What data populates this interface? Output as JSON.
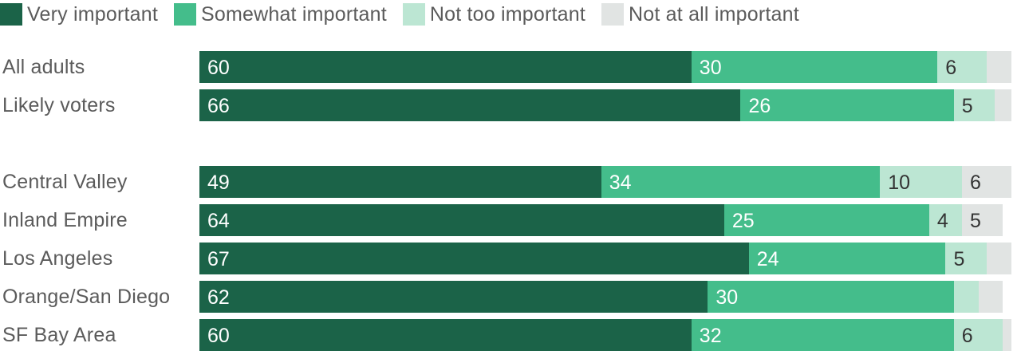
{
  "chart_data": {
    "type": "bar",
    "orientation": "horizontal",
    "stacked": true,
    "xlim": [
      0,
      100
    ],
    "grid": false,
    "legend_position": "top-left",
    "legend": [
      {
        "label": "Very important",
        "color": "#1b6348"
      },
      {
        "label": "Somewhat important",
        "color": "#44bd8b"
      },
      {
        "label": "Not too important",
        "color": "#bce6d3"
      },
      {
        "label": "Not at all important",
        "color": "#e1e4e3"
      }
    ],
    "categories": [
      "All adults",
      "Likely voters",
      "Central Valley",
      "Inland Empire",
      "Los Angeles",
      "Orange/San Diego",
      "SF Bay Area"
    ],
    "series": [
      {
        "name": "Very important",
        "color": "#1b6348",
        "label_color": "#ffffff",
        "values": [
          60,
          66,
          49,
          64,
          67,
          62,
          60
        ],
        "labels": [
          "60",
          "66",
          "49",
          "64",
          "67",
          "62",
          "60"
        ]
      },
      {
        "name": "Somewhat important",
        "color": "#44bd8b",
        "label_color": "#ffffff",
        "values": [
          30,
          26,
          34,
          25,
          24,
          30,
          32
        ],
        "labels": [
          "30",
          "26",
          "34",
          "25",
          "24",
          "30",
          "32"
        ]
      },
      {
        "name": "Not too important",
        "color": "#bce6d3",
        "label_color": "#333333",
        "values": [
          6,
          5,
          10,
          4,
          5,
          3,
          6
        ],
        "labels": [
          "6",
          "5",
          "10",
          "4",
          "5",
          "",
          "6"
        ]
      },
      {
        "name": "Not at all important",
        "color": "#e1e4e3",
        "label_color": "#333333",
        "values": [
          3,
          2,
          6,
          5,
          3,
          3,
          1
        ],
        "labels": [
          "",
          "",
          "6",
          "5",
          "",
          "",
          ""
        ]
      }
    ]
  }
}
